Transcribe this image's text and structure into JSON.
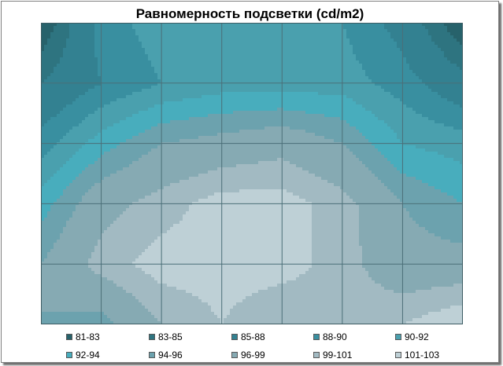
{
  "chart_data": {
    "type": "contour",
    "title": "Равномерность подсветки (cd/m2)",
    "x_columns": 7,
    "y_rows": 5,
    "grid": true,
    "legend_position": "bottom",
    "z_levels": [
      {
        "label": "81-83",
        "color": "#27626b"
      },
      {
        "label": "83-85",
        "color": "#2e7480"
      },
      {
        "label": "85-88",
        "color": "#338191"
      },
      {
        "label": "88-90",
        "color": "#398fa0"
      },
      {
        "label": "90-92",
        "color": "#4aa0ae"
      },
      {
        "label": "92-94",
        "color": "#48adbd"
      },
      {
        "label": "94-96",
        "color": "#6ca2ae"
      },
      {
        "label": "96-99",
        "color": "#86aab3"
      },
      {
        "label": "99-101",
        "color": "#a2bac2"
      },
      {
        "label": "101-103",
        "color": "#bed0d6"
      }
    ],
    "z_grid": [
      [
        81,
        89,
        91,
        91,
        91,
        90,
        87,
        81
      ],
      [
        85,
        88,
        90,
        91,
        91,
        91,
        89,
        86
      ],
      [
        89,
        93,
        96,
        97,
        98,
        96,
        92,
        91
      ],
      [
        93,
        98,
        100,
        102,
        102,
        100,
        96,
        94
      ],
      [
        96,
        100,
        102,
        102,
        102,
        100,
        97,
        97
      ],
      [
        96,
        95,
        99,
        101,
        99,
        100,
        101,
        103
      ]
    ]
  }
}
